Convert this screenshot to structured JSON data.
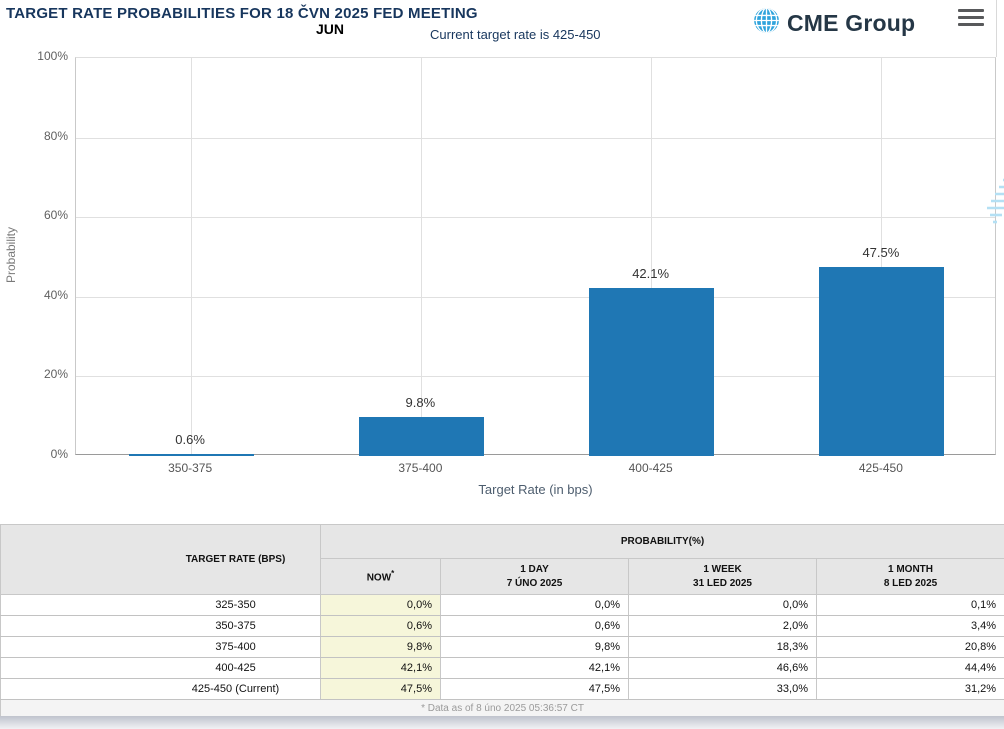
{
  "header": {
    "title": "TARGET RATE PROBABILITIES FOR 18 ČVN 2025 FED MEETING",
    "logo_text": "CME Group"
  },
  "subheader": {
    "month_label": "JUN",
    "current_rate_note": "Current target rate is 425-450"
  },
  "chart_data": {
    "type": "bar",
    "categories": [
      "350-375",
      "375-400",
      "400-425",
      "425-450"
    ],
    "values": [
      0.6,
      9.8,
      42.1,
      47.5
    ],
    "value_labels": [
      "0.6%",
      "9.8%",
      "42.1%",
      "47.5%"
    ],
    "xlabel": "Target Rate (in bps)",
    "ylabel": "Probability",
    "ylim": [
      0,
      100
    ],
    "yticks": [
      "0%",
      "20%",
      "40%",
      "60%",
      "80%",
      "100%"
    ],
    "grid": true,
    "legend": "none",
    "bar_color": "#1F77B4",
    "watermark_letter": "Q"
  },
  "table": {
    "col1_header": "TARGET RATE (BPS)",
    "group_header": "PROBABILITY(%)",
    "subheaders": [
      {
        "line1": "NOW",
        "sup": "*",
        "line2": ""
      },
      {
        "line1": "1 DAY",
        "sup": "",
        "line2": "7 ÚNO 2025"
      },
      {
        "line1": "1 WEEK",
        "sup": "",
        "line2": "31 LED 2025"
      },
      {
        "line1": "1 MONTH",
        "sup": "",
        "line2": "8 LED 2025"
      }
    ],
    "rows": [
      {
        "rate": "325-350",
        "values": [
          "0,0%",
          "0,0%",
          "0,0%",
          "0,1%"
        ]
      },
      {
        "rate": "350-375",
        "values": [
          "0,6%",
          "0,6%",
          "2,0%",
          "3,4%"
        ]
      },
      {
        "rate": "375-400",
        "values": [
          "9,8%",
          "9,8%",
          "18,3%",
          "20,8%"
        ]
      },
      {
        "rate": "400-425",
        "values": [
          "42,1%",
          "42,1%",
          "46,6%",
          "44,4%"
        ]
      },
      {
        "rate": "425-450 (Current)",
        "values": [
          "47,5%",
          "47,5%",
          "33,0%",
          "31,2%"
        ]
      }
    ],
    "footnote": "* Data as of 8 úno 2025 05:36:57 CT"
  },
  "colors": {
    "title_text": "#17365D",
    "bar_fill": "#1F77B4",
    "now_column_bg": "#F6F6DA",
    "table_header_bg": "#E6E6E6",
    "logo_globe": "#2EA3DC",
    "logo_text": "#253746"
  }
}
